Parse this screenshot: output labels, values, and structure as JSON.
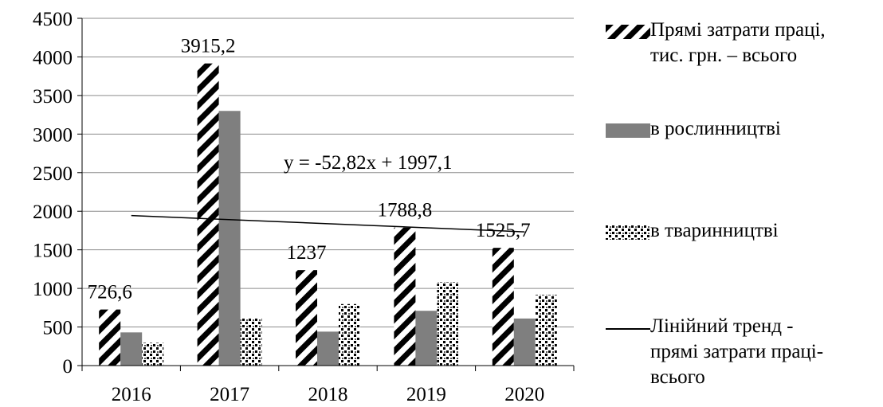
{
  "chart_data": {
    "type": "bar",
    "categories": [
      "2016",
      "2017",
      "2018",
      "2019",
      "2020"
    ],
    "series": [
      {
        "name": "Прямі затрати праці, тис. грн. – всього",
        "values": [
          726.6,
          3915.2,
          1237,
          1788.8,
          1525.7
        ],
        "pattern": "diagonal-stripes"
      },
      {
        "name": "в рослинництві",
        "values": [
          430,
          3300,
          440,
          710,
          610
        ],
        "pattern": "solid-gray"
      },
      {
        "name": "в тваринництві",
        "values": [
          295,
          615,
          797,
          1079,
          916
        ],
        "pattern": "dots"
      }
    ],
    "trendline": {
      "name": "Лінійний тренд - прямі затрати праці-всього",
      "equation": "y = -52,82x + 1997,1",
      "slope": -52.82,
      "intercept": 1997.1
    },
    "data_labels": [
      "726,6",
      "3915,2",
      "1237",
      "1788,8",
      "1525,7"
    ],
    "y_ticks": [
      "0",
      "500",
      "1000",
      "1500",
      "2000",
      "2500",
      "3000",
      "3500",
      "4000",
      "4500"
    ],
    "ylim": [
      0,
      4500
    ],
    "grid": true,
    "legend_position": "right",
    "colors": {
      "bar_fill": "#7f7f7f",
      "stripe": "#000000",
      "grid": "#8c8c8c"
    }
  },
  "legend": {
    "items": [
      {
        "label": "Прямі затрати праці,\nтис. грн. – всього",
        "swatch": "stripes"
      },
      {
        "label": "в рослинництві",
        "swatch": "solid"
      },
      {
        "label": "в тваринництві",
        "swatch": "dots"
      },
      {
        "label": "Лінійний тренд -\nпрямі затрати праці-\nвсього",
        "swatch": "line"
      }
    ]
  }
}
